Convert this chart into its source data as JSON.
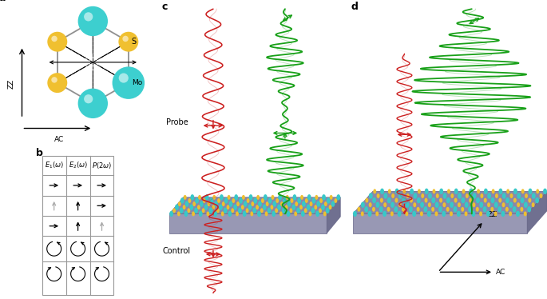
{
  "panel_labels": [
    "a",
    "b",
    "c",
    "d"
  ],
  "label_fontsize": 9,
  "label_fontweight": "bold",
  "colors": {
    "cyan_atom": "#3DCFCF",
    "yellow_atom": "#F0C030",
    "red_wave": "#CC2020",
    "green_wave": "#18A018",
    "substrate_top": "#8888A8",
    "substrate_front": "#9898B0",
    "substrate_side": "#7878A0",
    "hex_edge": "#909090",
    "table_line": "#999999"
  }
}
